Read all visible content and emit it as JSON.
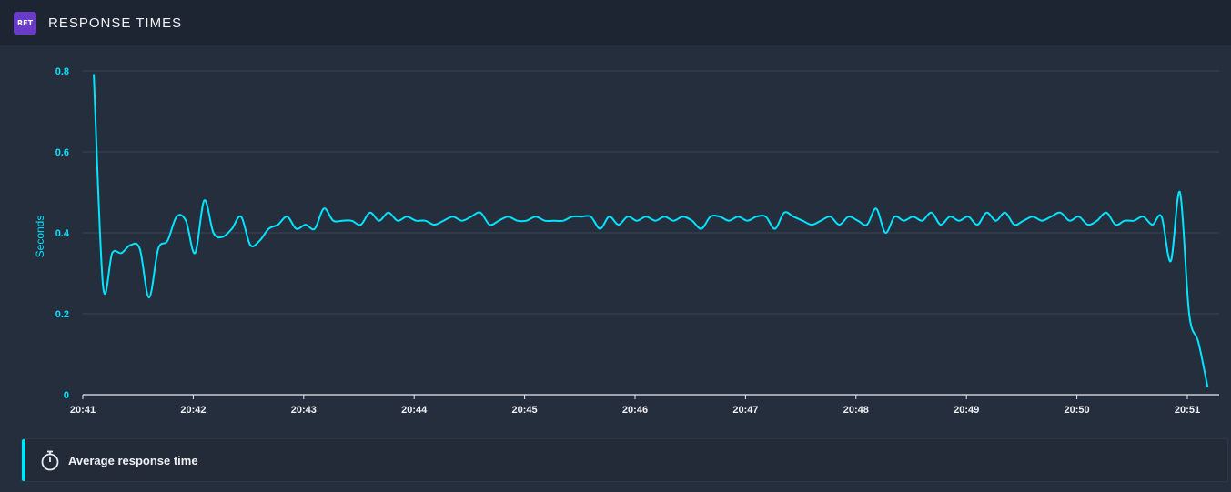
{
  "header": {
    "badge": "RET",
    "title": "RESPONSE TIMES"
  },
  "colors": {
    "line": "#00e5ff",
    "grid": "#3a4456",
    "badge": "#6a3bc9"
  },
  "legend": {
    "label": "Average response time",
    "icon": "stopwatch-icon"
  },
  "chart_data": {
    "type": "line",
    "title": "",
    "xlabel": "",
    "ylabel": "Seconds",
    "ylim": [
      0,
      0.8
    ],
    "yticks": [
      "0",
      "0.2",
      "0.4",
      "0.6",
      "0.8"
    ],
    "xticks": [
      "20:41",
      "20:42",
      "20:43",
      "20:44",
      "20:45",
      "20:46",
      "20:47",
      "20:48",
      "20:49",
      "20:50",
      "20:51"
    ],
    "grid": true,
    "legend_position": "bottom",
    "series": [
      {
        "name": "Average response time",
        "x": [
          "20:41:05",
          "20:41:10",
          "20:41:15",
          "20:41:20",
          "20:41:25",
          "20:41:30",
          "20:41:35",
          "20:41:40",
          "20:41:45",
          "20:41:50",
          "20:41:55",
          "20:42:00",
          "20:42:05",
          "20:42:10",
          "20:42:15",
          "20:42:20",
          "20:42:25",
          "20:42:30",
          "20:42:35",
          "20:42:40",
          "20:42:45",
          "20:42:50",
          "20:42:55",
          "20:43:00",
          "20:43:05",
          "20:43:10",
          "20:43:15",
          "20:43:20",
          "20:43:25",
          "20:43:30",
          "20:43:35",
          "20:43:40",
          "20:43:45",
          "20:43:50",
          "20:43:55",
          "20:44:00",
          "20:44:05",
          "20:44:10",
          "20:44:15",
          "20:44:20",
          "20:44:25",
          "20:44:30",
          "20:44:35",
          "20:44:40",
          "20:44:45",
          "20:44:50",
          "20:44:55",
          "20:45:00",
          "20:45:05",
          "20:45:10",
          "20:45:15",
          "20:45:20",
          "20:45:25",
          "20:45:30",
          "20:45:35",
          "20:45:40",
          "20:45:45",
          "20:45:50",
          "20:45:55",
          "20:46:00",
          "20:46:05",
          "20:46:10",
          "20:46:15",
          "20:46:20",
          "20:46:25",
          "20:46:30",
          "20:46:35",
          "20:46:40",
          "20:46:45",
          "20:46:50",
          "20:46:55",
          "20:47:00",
          "20:47:05",
          "20:47:10",
          "20:47:15",
          "20:47:20",
          "20:47:25",
          "20:47:30",
          "20:47:35",
          "20:47:40",
          "20:47:45",
          "20:47:50",
          "20:47:55",
          "20:48:00",
          "20:48:05",
          "20:48:10",
          "20:48:15",
          "20:48:20",
          "20:48:25",
          "20:48:30",
          "20:48:35",
          "20:48:40",
          "20:48:45",
          "20:48:50",
          "20:48:55",
          "20:49:00",
          "20:49:05",
          "20:49:10",
          "20:49:15",
          "20:49:20",
          "20:49:25",
          "20:49:30",
          "20:49:35",
          "20:49:40",
          "20:49:45",
          "20:49:50",
          "20:49:55",
          "20:50:00",
          "20:50:05",
          "20:50:10",
          "20:50:15",
          "20:50:20",
          "20:50:25",
          "20:50:30",
          "20:50:35",
          "20:50:40",
          "20:50:45",
          "20:50:50",
          "20:50:55",
          "20:51:00",
          "20:51:05",
          "20:51:10"
        ],
        "values": [
          0.79,
          0.27,
          0.35,
          0.35,
          0.37,
          0.36,
          0.24,
          0.36,
          0.38,
          0.44,
          0.43,
          0.35,
          0.48,
          0.4,
          0.39,
          0.41,
          0.44,
          0.37,
          0.38,
          0.41,
          0.42,
          0.44,
          0.41,
          0.42,
          0.41,
          0.46,
          0.43,
          0.43,
          0.43,
          0.42,
          0.45,
          0.43,
          0.45,
          0.43,
          0.44,
          0.43,
          0.43,
          0.42,
          0.43,
          0.44,
          0.43,
          0.44,
          0.45,
          0.42,
          0.43,
          0.44,
          0.43,
          0.43,
          0.44,
          0.43,
          0.43,
          0.43,
          0.44,
          0.44,
          0.44,
          0.41,
          0.44,
          0.42,
          0.44,
          0.43,
          0.44,
          0.43,
          0.44,
          0.43,
          0.44,
          0.43,
          0.41,
          0.44,
          0.44,
          0.43,
          0.44,
          0.43,
          0.44,
          0.44,
          0.41,
          0.45,
          0.44,
          0.43,
          0.42,
          0.43,
          0.44,
          0.42,
          0.44,
          0.43,
          0.42,
          0.46,
          0.4,
          0.44,
          0.43,
          0.44,
          0.43,
          0.45,
          0.42,
          0.44,
          0.43,
          0.44,
          0.42,
          0.45,
          0.43,
          0.45,
          0.42,
          0.43,
          0.44,
          0.43,
          0.44,
          0.45,
          0.43,
          0.44,
          0.42,
          0.43,
          0.45,
          0.42,
          0.43,
          0.43,
          0.44,
          0.42,
          0.44,
          0.33,
          0.5,
          0.2,
          0.13,
          0.02
        ]
      }
    ]
  }
}
